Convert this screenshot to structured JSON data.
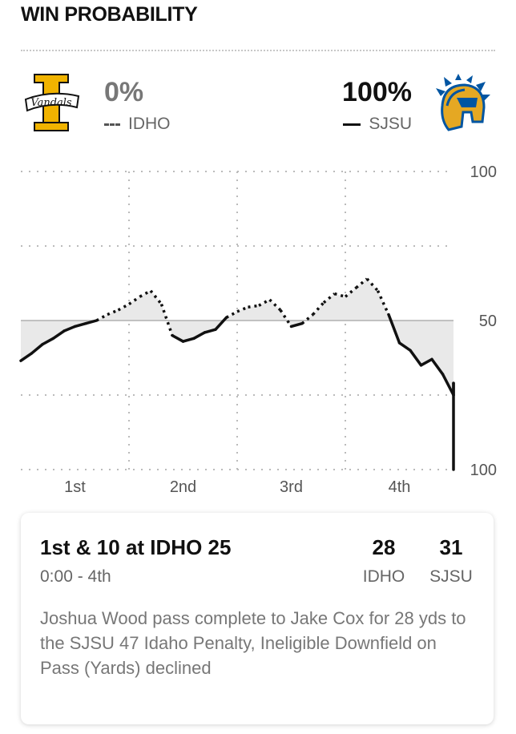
{
  "header": {
    "title": "WIN PROBABILITY"
  },
  "teams": {
    "away": {
      "abbr": "IDHO",
      "probability": "0%",
      "logo_icon": "vandals-logo-icon",
      "logo_text": "Vandals",
      "color": "#f1b300",
      "line_style": "dotted"
    },
    "home": {
      "abbr": "SJSU",
      "probability": "100%",
      "logo_icon": "spartan-helmet-logo-icon",
      "color": "#0055a2",
      "secondary_color": "#e5a823",
      "line_style": "solid"
    }
  },
  "chart_data": {
    "type": "line",
    "title": "",
    "y_tick_labels": [
      "100",
      "50",
      "100"
    ],
    "categories": [
      "1st",
      "2nd",
      "3rd",
      "4th"
    ],
    "ylim": [
      0,
      100
    ],
    "y_semantics": "win probability of leading team; 50 = even",
    "series": [
      {
        "name": "Win probability",
        "x": [
          0,
          0.1,
          0.2,
          0.3,
          0.4,
          0.5,
          0.6,
          0.7,
          0.8,
          0.9,
          1.0,
          1.1,
          1.2,
          1.3,
          1.4,
          1.5,
          1.6,
          1.7,
          1.8,
          1.9,
          2.0,
          2.1,
          2.2,
          2.3,
          2.4,
          2.5,
          2.6,
          2.7,
          2.8,
          2.9,
          3.0,
          3.1,
          3.2,
          3.3,
          3.4,
          3.5,
          3.6,
          3.7,
          3.8,
          3.9,
          4.0,
          4.1,
          4.15
        ],
        "y": [
          -27,
          -22,
          -16,
          -12,
          -7,
          -4,
          -2,
          0,
          4,
          7,
          11,
          16,
          20,
          11,
          -10,
          -14,
          -12,
          -8,
          -6,
          2,
          6,
          9,
          10,
          14,
          7,
          -4,
          -2,
          4,
          12,
          18,
          16,
          22,
          28,
          20,
          4,
          -15,
          -20,
          -30,
          -26,
          -36,
          -50,
          -42,
          -100
        ]
      }
    ],
    "grid": true,
    "legend": "top"
  },
  "play": {
    "down_distance": "1st & 10 at IDHO 25",
    "clock": "0:00 - 4th",
    "away_score": "28",
    "home_score": "31",
    "away_label": "IDHO",
    "home_label": "SJSU",
    "description": "Joshua Wood pass complete to Jake Cox for 28 yds to the SJSU 47 Idaho Penalty, Ineligible Downfield on Pass (Yards) declined"
  }
}
